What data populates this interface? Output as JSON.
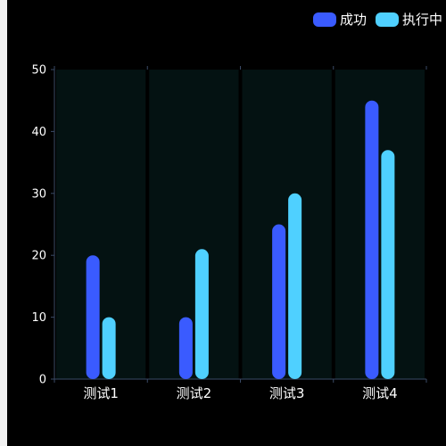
{
  "colors": {
    "background": "#000000",
    "plot_background": "#041212",
    "axis": "#3a4a66",
    "tick_text": "#ffffff",
    "series_success": "#3a5bff",
    "series_running": "#4fd0ff"
  },
  "legend": {
    "placement": "top-right",
    "items": [
      {
        "label": "成功",
        "color": "#3a5bff"
      },
      {
        "label": "执行中",
        "color": "#4fd0ff"
      }
    ]
  },
  "chart_data": {
    "type": "bar",
    "categories": [
      "测试1",
      "测试2",
      "测试3",
      "测试4"
    ],
    "series": [
      {
        "name": "成功",
        "values": [
          20,
          10,
          25,
          45
        ]
      },
      {
        "name": "执行中",
        "values": [
          10,
          21,
          30,
          37
        ]
      }
    ],
    "ylim": [
      0,
      50
    ],
    "yticks": [
      0,
      10,
      20,
      30,
      40,
      50
    ],
    "grid": false,
    "legend_placement": "top-right"
  }
}
